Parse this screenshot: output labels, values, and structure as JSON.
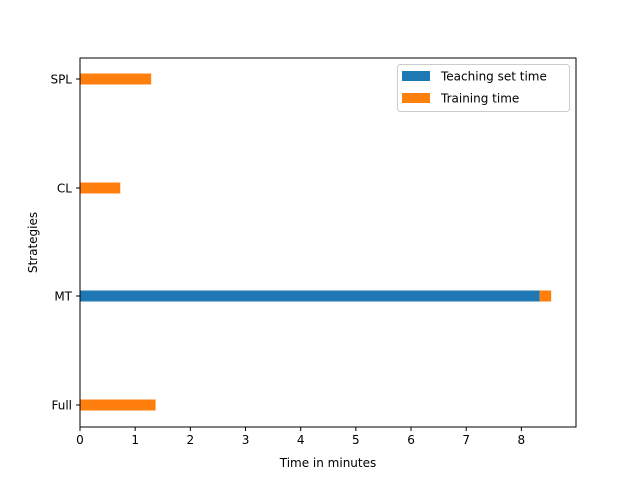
{
  "chart_data": {
    "type": "bar",
    "orientation": "horizontal",
    "stacked": true,
    "categories": [
      "Full",
      "MT",
      "CL",
      "SPL"
    ],
    "series": [
      {
        "name": "Teaching set time",
        "values": [
          0.0,
          8.33,
          0.0,
          0.0
        ],
        "color": "#1f77b4"
      },
      {
        "name": "Training time",
        "values": [
          1.37,
          0.21,
          0.73,
          1.29
        ],
        "color": "#ff7f0e"
      }
    ],
    "xlabel": "Time in minutes",
    "ylabel": "Strategies",
    "xlim": [
      0,
      8.99
    ],
    "x_ticks": [
      "0",
      "1",
      "2",
      "3",
      "4",
      "5",
      "6",
      "7",
      "8"
    ],
    "title": "",
    "grid": false,
    "legend_position": "top-right"
  }
}
